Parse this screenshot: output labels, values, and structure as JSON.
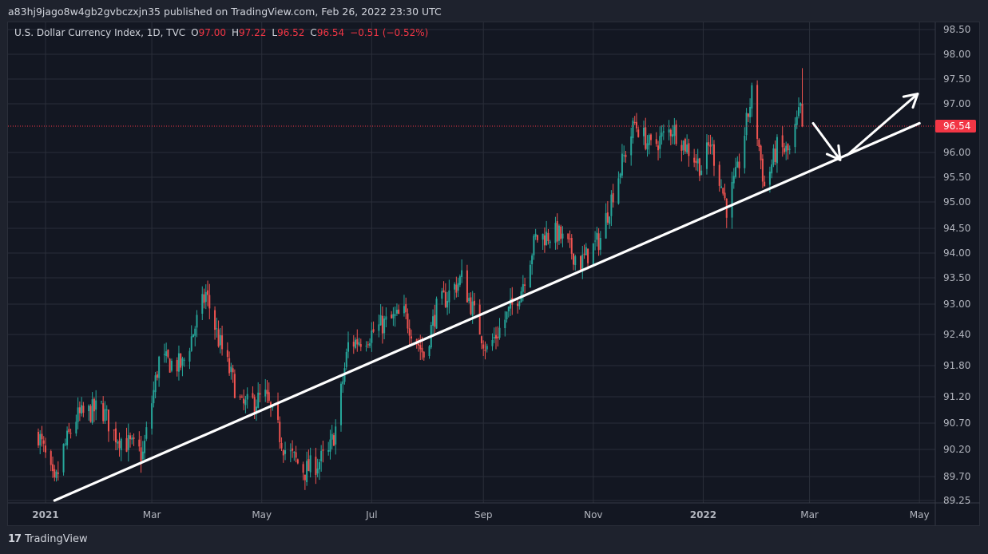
{
  "header": {
    "published_line": "a83hj9jago8w4gb2gvbczxjn35 published on TradingView.com, Feb 26, 2022 23:30 UTC"
  },
  "legend": {
    "symbol": "U.S. Dollar Currency Index, 1D, TVC",
    "open_label": "O",
    "open": "97.00",
    "high_label": "H",
    "high": "97.22",
    "low_label": "L",
    "low": "96.52",
    "close_label": "C",
    "close": "96.54",
    "change": "−0.51 (−0.52%)"
  },
  "footer": {
    "brand": "TradingView",
    "logo_icon": "tradingview-logo-icon"
  },
  "colors": {
    "background": "#131722",
    "grid": "#2a2e39",
    "up": "#26a69a",
    "down": "#ef5350",
    "price_line": "#f23645",
    "drawing": "#ffffff"
  },
  "chart_data": {
    "type": "candlestick",
    "symbol": "U.S. Dollar Currency Index",
    "interval": "1D",
    "last_price": "96.54",
    "y_axis_ticks": [
      "98.50",
      "98.00",
      "97.50",
      "97.00",
      "96.00",
      "95.50",
      "95.00",
      "94.50",
      "94.00",
      "93.50",
      "93.00",
      "92.40",
      "91.80",
      "91.20",
      "90.70",
      "90.20",
      "89.70",
      "89.25"
    ],
    "x_axis_ticks": [
      "2021",
      "Mar",
      "May",
      "Jul",
      "Sep",
      "Nov",
      "2022",
      "Mar",
      "May"
    ],
    "x_axis_bold": [
      "2021",
      "2022"
    ],
    "ylim": [
      89.2,
      98.6
    ],
    "anchors": [
      [
        "2020-12-28",
        90.5
      ],
      [
        "2021-01-06",
        89.5
      ],
      [
        "2021-01-11",
        90.2
      ],
      [
        "2021-01-18",
        90.8
      ],
      [
        "2021-02-01",
        91.0
      ],
      [
        "2021-02-08",
        90.5
      ],
      [
        "2021-02-24",
        90.1
      ],
      [
        "2021-03-05",
        91.9
      ],
      [
        "2021-03-18",
        91.8
      ],
      [
        "2021-03-31",
        93.2
      ],
      [
        "2021-04-07",
        92.3
      ],
      [
        "2021-04-20",
        91.0
      ],
      [
        "2021-05-03",
        91.2
      ],
      [
        "2021-05-14",
        90.2
      ],
      [
        "2021-05-25",
        89.8
      ],
      [
        "2021-06-07",
        90.1
      ],
      [
        "2021-06-11",
        90.6
      ],
      [
        "2021-06-18",
        92.2
      ],
      [
        "2021-06-30",
        92.4
      ],
      [
        "2021-07-07",
        92.6
      ],
      [
        "2021-07-19",
        92.8
      ],
      [
        "2021-07-30",
        92.0
      ],
      [
        "2021-08-06",
        92.9
      ],
      [
        "2021-08-20",
        93.5
      ],
      [
        "2021-09-03",
        92.1
      ],
      [
        "2021-09-10",
        92.5
      ],
      [
        "2021-09-22",
        93.3
      ],
      [
        "2021-09-30",
        94.3
      ],
      [
        "2021-10-12",
        94.4
      ],
      [
        "2021-10-25",
        93.8
      ],
      [
        "2021-11-05",
        94.3
      ],
      [
        "2021-11-12",
        95.2
      ],
      [
        "2021-11-24",
        96.6
      ],
      [
        "2021-12-03",
        96.1
      ],
      [
        "2021-12-15",
        96.5
      ],
      [
        "2021-12-31",
        95.7
      ],
      [
        "2022-01-05",
        96.2
      ],
      [
        "2022-01-14",
        94.9
      ],
      [
        "2022-01-20",
        95.6
      ],
      [
        "2022-01-28",
        97.2
      ],
      [
        "2022-02-04",
        95.3
      ],
      [
        "2022-02-11",
        96.1
      ],
      [
        "2022-02-18",
        96.0
      ],
      [
        "2022-02-24",
        96.9
      ],
      [
        "2022-02-25",
        96.54
      ]
    ],
    "trendline": {
      "start": [
        "2021-01-06",
        89.25
      ],
      "end": [
        "2022-05-01",
        96.6
      ],
      "color": "#ffffff"
    },
    "arrows": [
      {
        "from": [
          "2022-03-03",
          96.6
        ],
        "to": [
          "2022-03-18",
          95.85
        ],
        "color": "#ffffff"
      },
      {
        "from": [
          "2022-03-22",
          95.95
        ],
        "to": [
          "2022-04-30",
          97.2
        ],
        "color": "#ffffff"
      }
    ]
  }
}
